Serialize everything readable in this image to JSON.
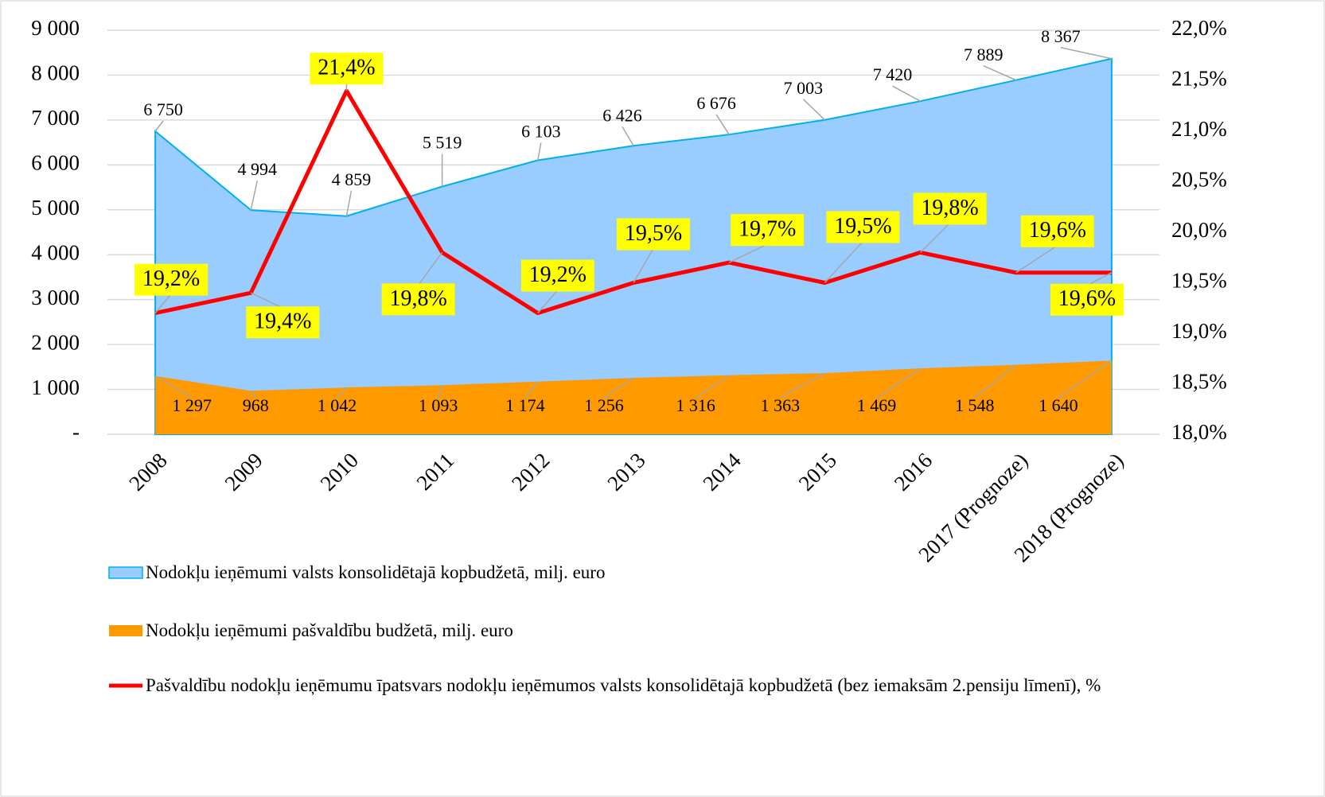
{
  "chart_data": {
    "type": "area-line",
    "categories": [
      "2008",
      "2009",
      "2010",
      "2011",
      "2012",
      "2013",
      "2014",
      "2015",
      "2016",
      "2017 (Prognoze)",
      "2018 (Prognoze)"
    ],
    "series": [
      {
        "name": "Nodokļu ieņēmumi valsts konsolidētajā kopbudžetā, milj. euro",
        "color": "#99ccff",
        "edge": "#00b0f0",
        "kind": "area",
        "values": [
          6750,
          4994,
          4859,
          5519,
          6103,
          6426,
          6676,
          7003,
          7420,
          7889,
          8367
        ],
        "value_labels": [
          "6 750",
          "4 994",
          "4 859",
          "5 519",
          "6 103",
          "6 426",
          "6 676",
          "7 003",
          "7 420",
          "7 889",
          "8 367"
        ]
      },
      {
        "name": "Nodokļu ieņēmumi pašvaldību budžetā, milj. euro",
        "color": "#ff9900",
        "kind": "area",
        "values": [
          1297,
          968,
          1042,
          1093,
          1174,
          1256,
          1316,
          1363,
          1469,
          1548,
          1640
        ],
        "value_labels": [
          "1 297",
          "968",
          "1 042",
          "1 093",
          "1 174",
          "1 256",
          "1 316",
          "1 363",
          "1 469",
          "1 548",
          "1 640"
        ]
      },
      {
        "name": "Pašvaldību nodokļu ieņēmumu īpatsvars nodokļu ieņēmumos valsts konsolidētajā kopbudžetā (bez iemaksām 2.pensiju līmenī), %",
        "color": "#ff0000",
        "kind": "line",
        "axis": "y2",
        "values": [
          19.2,
          19.4,
          21.4,
          19.8,
          19.2,
          19.5,
          19.7,
          19.5,
          19.8,
          19.6,
          19.6
        ],
        "value_labels": [
          "19,2%",
          "19,4%",
          "21,4%",
          "19,8%",
          "19,2%",
          "19,5%",
          "19,7%",
          "19,5%",
          "19,8%",
          "19,6%",
          "19,6%"
        ]
      }
    ],
    "ylim": [
      0,
      9000
    ],
    "yticks": [
      {
        "value": 0,
        "label": "-"
      },
      {
        "value": 1000,
        "label": "1 000"
      },
      {
        "value": 2000,
        "label": "2 000"
      },
      {
        "value": 3000,
        "label": "3 000"
      },
      {
        "value": 4000,
        "label": "4 000"
      },
      {
        "value": 5000,
        "label": "5 000"
      },
      {
        "value": 6000,
        "label": "6 000"
      },
      {
        "value": 7000,
        "label": "7 000"
      },
      {
        "value": 8000,
        "label": "8 000"
      },
      {
        "value": 9000,
        "label": "9 000"
      }
    ],
    "y2lim": [
      18,
      22
    ],
    "y2ticks": [
      {
        "value": 18,
        "label": "18,0%"
      },
      {
        "value": 18.5,
        "label": "18,5%"
      },
      {
        "value": 19,
        "label": "19,0%"
      },
      {
        "value": 19.5,
        "label": "19,5%"
      },
      {
        "value": 20,
        "label": "20,0%"
      },
      {
        "value": 20.5,
        "label": "20,5%"
      },
      {
        "value": 21,
        "label": "21,0%"
      },
      {
        "value": 21.5,
        "label": "21,5%"
      },
      {
        "value": 22,
        "label": "22,0%"
      }
    ],
    "grid": true,
    "label_box_color": "#ffff00"
  }
}
